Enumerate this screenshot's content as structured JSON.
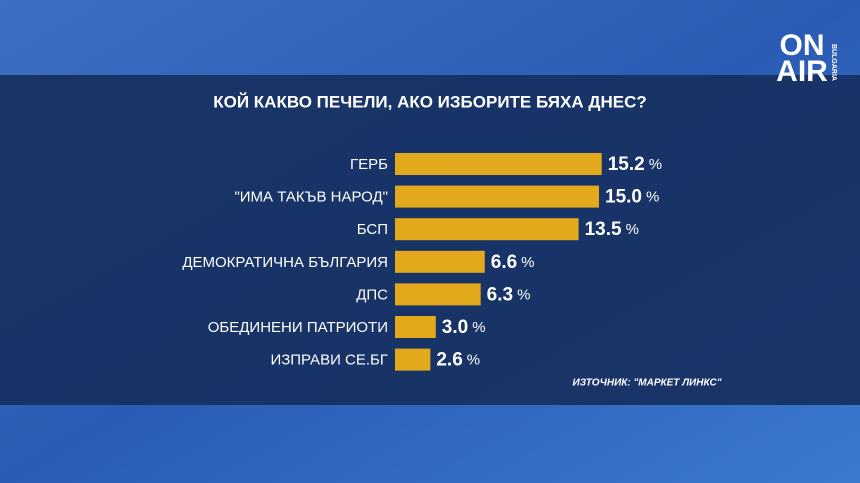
{
  "chart_data": {
    "type": "hbar",
    "title": "КОЙ КАКВО ПЕЧЕЛИ, АКО ИЗБОРИТЕ БЯХА ДНЕС?",
    "categories": [
      "ГЕРБ",
      "\"ИМА ТАКЪВ НАРОД\"",
      "БСП",
      "ДЕМОКРАТИЧНА БЪЛГАРИЯ",
      "ДПС",
      "ОБЕДИНЕНИ ПАТРИОТИ",
      "ИЗПРАВИ СЕ.БГ"
    ],
    "values": [
      15.2,
      15.0,
      13.5,
      6.6,
      6.3,
      3.0,
      2.6
    ],
    "value_labels": [
      "15.2",
      "15.0",
      "13.5",
      "6.6",
      "6.3",
      "3.0",
      "2.6"
    ],
    "unit": "%",
    "color": "#e3a91c",
    "source": "ИЗТОЧНИК: \"МАРКЕТ ЛИНКС\""
  },
  "logo": {
    "line1": "ON",
    "line2": "AIR",
    "sub": "BULGARIA"
  }
}
